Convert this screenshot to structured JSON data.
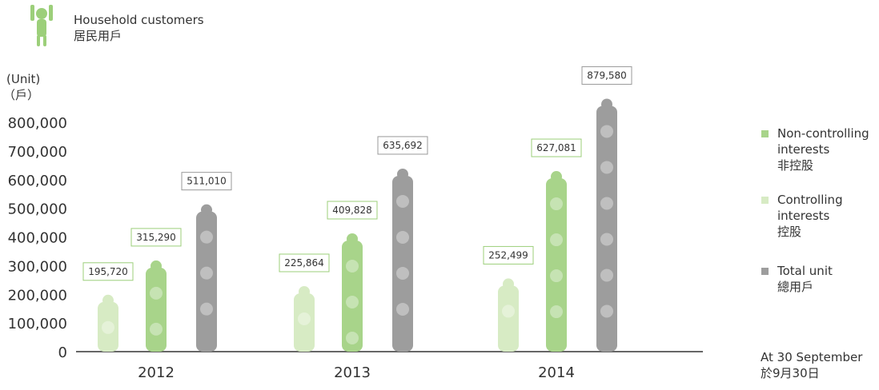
{
  "header": {
    "title": "Household customers",
    "title_zh": "居民用戶"
  },
  "chart_data": {
    "type": "pictorial-bar",
    "y_label": "(Unit)",
    "y_label_zh": "（戶）",
    "categories": [
      "2012",
      "2013",
      "2014"
    ],
    "series": [
      {
        "name": "Controlling interests",
        "name_zh": "控股",
        "color": "#d7ebc4",
        "values": [
          195720,
          225864,
          252499
        ],
        "value_labels": [
          "195,720",
          "225,864",
          "252,499"
        ]
      },
      {
        "name": "Non-controlling interests",
        "name_zh": "非控股",
        "color": "#a8d48a",
        "values": [
          315290,
          409828,
          627081
        ],
        "value_labels": [
          "315,290",
          "409,828",
          "627,081"
        ]
      },
      {
        "name": "Total unit",
        "name_zh": "總用戶",
        "color": "#9d9d9d",
        "values": [
          511010,
          635692,
          879580
        ],
        "value_labels": [
          "511,010",
          "635,692",
          "879,580"
        ]
      }
    ],
    "legend_order": [
      1,
      0,
      2
    ],
    "ylim": [
      0,
      800000
    ],
    "yticks": [
      0,
      {
        "value": 100000,
        "label": "100,000"
      },
      {
        "value": 200000,
        "label": "200,000"
      },
      {
        "value": 300000,
        "label": "300,000"
      },
      {
        "value": 400000,
        "label": "400,000"
      },
      {
        "value": 500000,
        "label": "500,000"
      },
      {
        "value": 600000,
        "label": "600,000"
      },
      {
        "value": 700000,
        "label": "700,000"
      },
      {
        "value": 800000,
        "label": "800,000"
      }
    ],
    "note": "At 30 September",
    "note_zh": "於9月30日"
  }
}
